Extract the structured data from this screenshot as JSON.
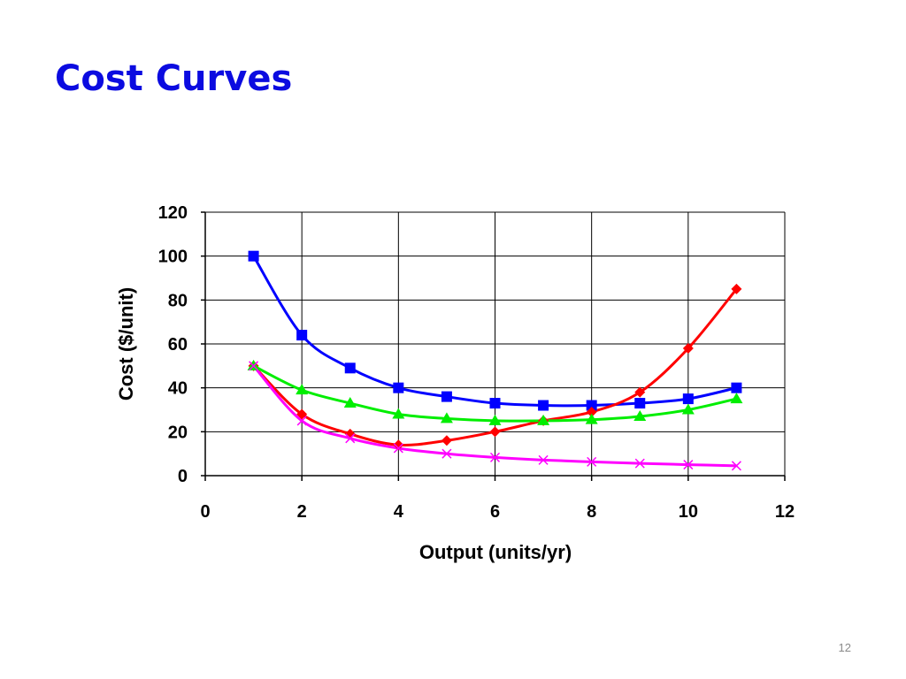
{
  "slide": {
    "title": "Cost Curves",
    "page_number": "12"
  },
  "chart_data": {
    "type": "line",
    "title": "",
    "xlabel": "Output (units/yr)",
    "ylabel": "Cost ($/unit)",
    "xlim": [
      0,
      12
    ],
    "ylim": [
      0,
      120
    ],
    "xticks": [
      0,
      2,
      4,
      6,
      8,
      10,
      12
    ],
    "yticks": [
      0,
      20,
      40,
      60,
      80,
      100,
      120
    ],
    "grid": true,
    "legend": "none",
    "x": [
      1,
      2,
      3,
      4,
      5,
      6,
      7,
      8,
      9,
      10,
      11
    ],
    "series": [
      {
        "color": "#0000FF",
        "marker": "square",
        "values": [
          100,
          64,
          49,
          40,
          36,
          33,
          32,
          32,
          33,
          35,
          40
        ]
      },
      {
        "color": "#FF0000",
        "marker": "diamond",
        "values": [
          50,
          28,
          19,
          14,
          16,
          20,
          25,
          29,
          38,
          58,
          85
        ]
      },
      {
        "color": "#00EE00",
        "marker": "triangle",
        "values": [
          50,
          39,
          33,
          28,
          26,
          25,
          25,
          25.5,
          27,
          30,
          35
        ]
      },
      {
        "color": "#FF00FF",
        "marker": "x",
        "values": [
          50,
          25,
          17,
          12.5,
          10,
          8.3,
          7.1,
          6.3,
          5.6,
          5,
          4.5
        ]
      }
    ]
  }
}
